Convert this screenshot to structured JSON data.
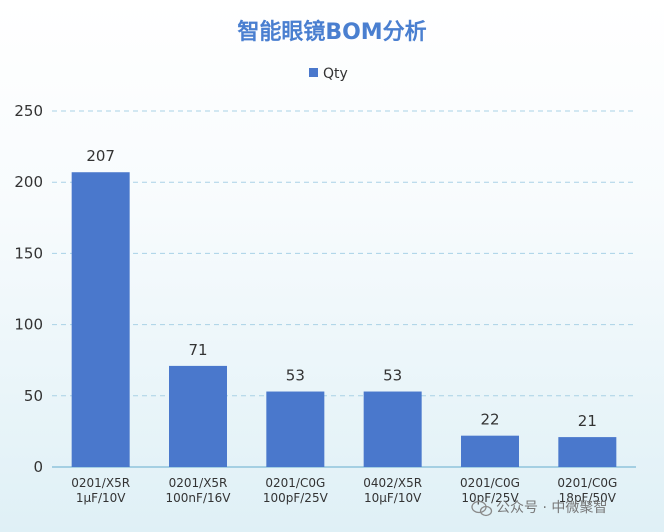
{
  "chart_data": {
    "type": "bar",
    "title": "智能眼镜BOM分析",
    "legend": {
      "position": "top-center",
      "entries": [
        "Qty"
      ]
    },
    "categories": [
      [
        "0201/X5R",
        "1μF/10V"
      ],
      [
        "0201/X5R",
        "100nF/16V"
      ],
      [
        "0201/C0G",
        "100pF/25V"
      ],
      [
        "0402/X5R",
        "10μF/10V"
      ],
      [
        "0201/C0G",
        "10pF/25V"
      ],
      [
        "0201/C0G",
        "18pF/50V"
      ]
    ],
    "series": [
      {
        "name": "Qty",
        "values": [
          207,
          71,
          53,
          53,
          22,
          21
        ]
      }
    ],
    "data_labels": [
      "207",
      "71",
      "53",
      "53",
      "22",
      "21"
    ],
    "ylim": [
      0,
      250
    ],
    "yticks": [
      "0",
      "50",
      "100",
      "150",
      "200",
      "250"
    ],
    "grid": true,
    "xlabel": "",
    "ylabel": ""
  },
  "colors": {
    "bar": "#4a78cc",
    "title": "#4a7fd0",
    "grid": "#a9d2e6",
    "axis": "#8fc3dc"
  },
  "watermark": {
    "text": "公众号 · 中微聚智",
    "icon": "wechat-icon"
  }
}
